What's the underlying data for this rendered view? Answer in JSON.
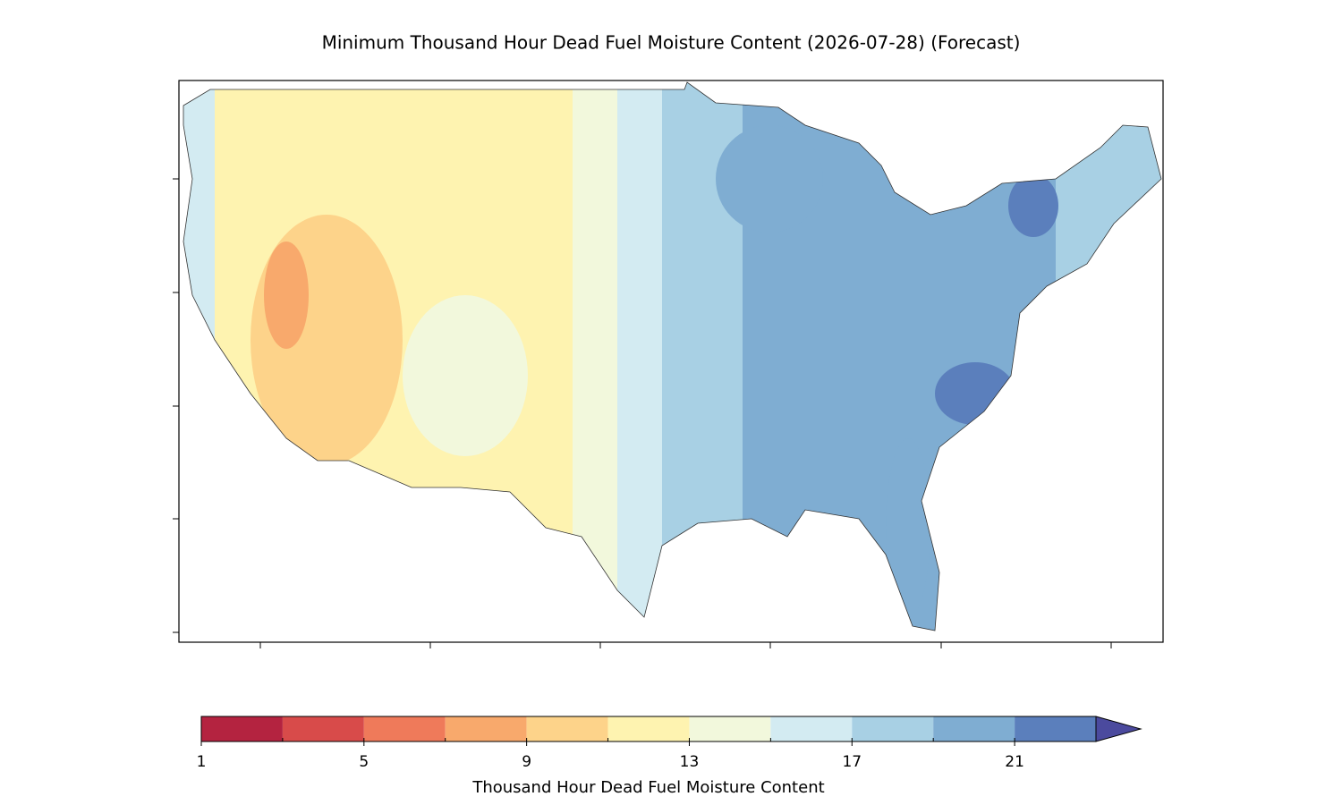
{
  "title": "Minimum Thousand Hour Dead Fuel Moisture Content (2026-07-28) (Forecast)",
  "colorbar": {
    "label": "Thousand Hour Dead Fuel Moisture Content",
    "levels": [
      1,
      3,
      5,
      7,
      9,
      11,
      13,
      15,
      17,
      19,
      21,
      23
    ],
    "colors": [
      "#b42340",
      "#d84b4a",
      "#ef7a5a",
      "#f8a96c",
      "#fdd38a",
      "#fef3b0",
      "#f2f8dc",
      "#d3ebf2",
      "#a8d0e4",
      "#7fadd2",
      "#5b7fbc"
    ],
    "extend_color": "#4b4a9e",
    "ticks": [
      1,
      5,
      9,
      13,
      17,
      21
    ]
  }
}
